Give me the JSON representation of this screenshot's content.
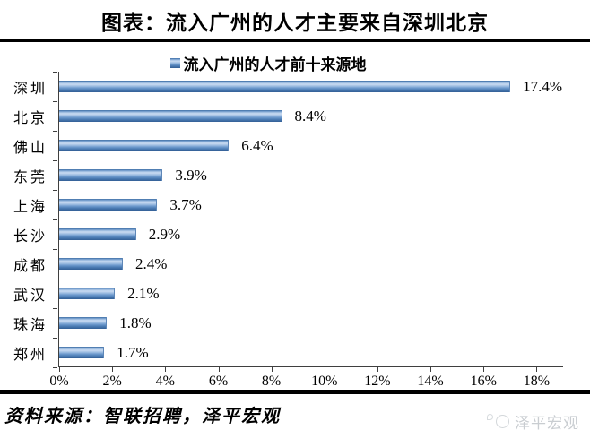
{
  "title": "图表：流入广州的人才主要来自深圳北京",
  "legend": "流入广州的人才前十来源地",
  "source": "资料来源：智联招聘，泽平宏观",
  "watermark": "泽平宏观",
  "colors": {
    "bar_main": "#4f81bd",
    "bar_light": "#c7d9f0",
    "bar_dark": "#335f95",
    "axis": "#3f3f3f",
    "rule": "#000000",
    "watermark_gray": "#c9cdd1"
  },
  "chart_data": {
    "type": "bar",
    "orientation": "horizontal",
    "title": "流入广州的人才前十来源地",
    "categories": [
      "深圳",
      "北京",
      "佛山",
      "东莞",
      "上海",
      "长沙",
      "成都",
      "武汉",
      "珠海",
      "郑州"
    ],
    "values": [
      17.4,
      8.4,
      6.4,
      3.9,
      3.7,
      2.9,
      2.4,
      2.1,
      1.8,
      1.7
    ],
    "value_labels": [
      "17.4%",
      "8.4%",
      "6.4%",
      "3.9%",
      "3.7%",
      "2.9%",
      "2.4%",
      "2.1%",
      "1.8%",
      "1.7%"
    ],
    "xlabel": "",
    "ylabel": "",
    "xlim": [
      0,
      19
    ],
    "x_ticks": [
      "0%",
      "2%",
      "4%",
      "6%",
      "8%",
      "10%",
      "12%",
      "14%",
      "16%",
      "18%"
    ],
    "x_tick_values": [
      0,
      2,
      4,
      6,
      8,
      10,
      12,
      14,
      16,
      18
    ],
    "grid": false,
    "legend_position": "top"
  }
}
